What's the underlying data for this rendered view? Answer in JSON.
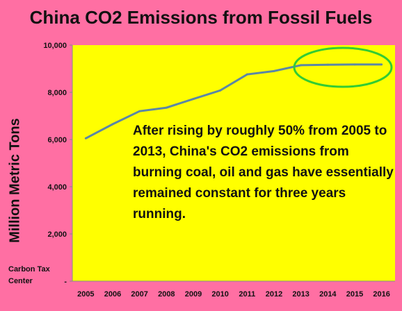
{
  "chart_data": {
    "type": "line",
    "title": "China CO2 Emissions from Fossil Fuels",
    "ylabel": "Million Metric Tons",
    "xlabel": "",
    "x": [
      "2005",
      "2006",
      "2007",
      "2008",
      "2009",
      "2010",
      "2011",
      "2012",
      "2013",
      "2014",
      "2015",
      "2016"
    ],
    "values": [
      6050,
      6650,
      7200,
      7350,
      7720,
      8080,
      8760,
      8900,
      9150,
      9170,
      9180,
      9180
    ],
    "ylim": [
      0,
      10000
    ],
    "yticks": [
      {
        "value": 0,
        "label": "-"
      },
      {
        "value": 2000,
        "label": "2,000"
      },
      {
        "value": 4000,
        "label": "4,000"
      },
      {
        "value": 6000,
        "label": "6,000"
      },
      {
        "value": 8000,
        "label": "8,000"
      },
      {
        "value": 10000,
        "label": "10,000"
      }
    ],
    "grid": false,
    "legend": "none",
    "line_color": "#5b87a6",
    "plot_background": "#ffff00",
    "highlight_color": "#33cc33",
    "annotation": "After rising by roughly 50% from 2005 to 2013, China's CO2 emissions from burning coal, oil and gas have essentially remained constant for three years running."
  },
  "credit": "Carbon Tax Center",
  "colors": {
    "page_background": "#ff6fa3"
  }
}
